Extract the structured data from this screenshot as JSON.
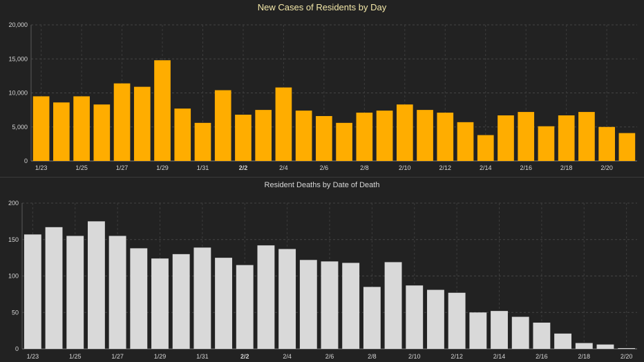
{
  "chart_data": [
    {
      "type": "bar",
      "title": "New Cases of Residents by Day",
      "xlabel": "",
      "ylabel": "",
      "ylim": [
        0,
        20000
      ],
      "yticks": [
        "0",
        "5,000",
        "10,000",
        "15,000",
        "20,000"
      ],
      "ytick_values": [
        0,
        5000,
        10000,
        15000,
        20000
      ],
      "categories": [
        "1/23",
        "1/24",
        "1/25",
        "1/26",
        "1/27",
        "1/28",
        "1/29",
        "1/30",
        "1/31",
        "2/1",
        "2/2",
        "2/3",
        "2/4",
        "2/5",
        "2/6",
        "2/7",
        "2/8",
        "2/9",
        "2/10",
        "2/11",
        "2/12",
        "2/13",
        "2/14",
        "2/15",
        "2/16",
        "2/17",
        "2/18",
        "2/19",
        "2/20",
        "2/21"
      ],
      "xtick_labels": [
        "1/23",
        "1/25",
        "1/27",
        "1/29",
        "1/31",
        "2/2",
        "2/4",
        "2/6",
        "2/8",
        "2/10",
        "2/12",
        "2/14",
        "2/16",
        "2/18",
        "2/20"
      ],
      "bold_tick": "2/2",
      "values": [
        9500,
        8600,
        9500,
        8300,
        11400,
        10900,
        14800,
        7700,
        5600,
        10400,
        6800,
        7500,
        10800,
        7400,
        6600,
        5600,
        7100,
        7400,
        8300,
        7500,
        7100,
        5700,
        3800,
        6700,
        7200,
        5100,
        6700,
        7200,
        5000,
        4100
      ],
      "bar_color": "#ffad00",
      "grid": true
    },
    {
      "type": "bar",
      "title": "Resident Deaths by Date of Death",
      "xlabel": "",
      "ylabel": "",
      "ylim": [
        0,
        200
      ],
      "yticks": [
        "0",
        "50",
        "100",
        "150",
        "200"
      ],
      "ytick_values": [
        0,
        50,
        100,
        150,
        200
      ],
      "categories": [
        "1/23",
        "1/24",
        "1/25",
        "1/26",
        "1/27",
        "1/28",
        "1/29",
        "1/30",
        "1/31",
        "2/1",
        "2/2",
        "2/3",
        "2/4",
        "2/5",
        "2/6",
        "2/7",
        "2/8",
        "2/9",
        "2/10",
        "2/11",
        "2/12",
        "2/13",
        "2/14",
        "2/15",
        "2/16",
        "2/17",
        "2/18",
        "2/19",
        "2/20"
      ],
      "xtick_labels": [
        "1/23",
        "1/25",
        "1/27",
        "1/29",
        "1/31",
        "2/2",
        "2/4",
        "2/6",
        "2/8",
        "2/10",
        "2/12",
        "2/14",
        "2/16",
        "2/18",
        "2/20"
      ],
      "bold_tick": "2/2",
      "values": [
        157,
        167,
        155,
        175,
        155,
        138,
        124,
        130,
        139,
        125,
        115,
        142,
        137,
        122,
        120,
        118,
        85,
        119,
        87,
        81,
        77,
        50,
        52,
        44,
        36,
        21,
        8,
        6,
        1
      ],
      "bar_color": "#d9d9d9",
      "grid": true
    }
  ]
}
